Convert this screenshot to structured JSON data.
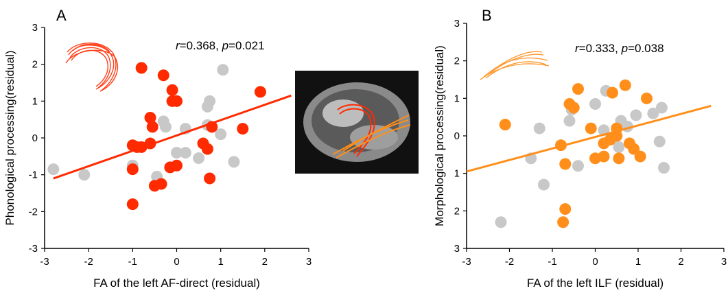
{
  "chart_data": [
    {
      "type": "scatter",
      "panel_label": "A",
      "xlabel": "FA of the left AF-direct (residual)",
      "ylabel": "Phonological processing(residual)",
      "xlim": [
        -3,
        3
      ],
      "ylim": [
        -3,
        3
      ],
      "xticks": [
        "-3",
        "-2",
        "-1",
        "0",
        "1",
        "2",
        "3"
      ],
      "yticks": [
        "3",
        "2",
        "1",
        "0",
        "-1",
        "-2",
        "-3"
      ],
      "annotation": {
        "r_sym": "r",
        "r_text": "=0.368, ",
        "p_sym": "p",
        "p_text": "=0.021"
      },
      "colors": {
        "highlight": "#ff2a00",
        "other": "#c8c8c8",
        "fit": "#ff2a00"
      },
      "series": [
        {
          "values": [
            [
              -0.8,
              1.9
            ],
            [
              -0.3,
              1.7
            ],
            [
              -0.1,
              1.3
            ],
            [
              -0.1,
              1.0
            ],
            [
              0.0,
              1.0
            ],
            [
              1.9,
              1.25
            ],
            [
              -0.6,
              0.55
            ],
            [
              -0.55,
              0.3
            ],
            [
              0.8,
              0.3
            ],
            [
              1.5,
              0.25
            ],
            [
              -1.0,
              -0.2
            ],
            [
              -0.9,
              -0.25
            ],
            [
              -0.8,
              -0.25
            ],
            [
              -0.6,
              -0.15
            ],
            [
              0.6,
              -0.15
            ],
            [
              0.7,
              -0.3
            ],
            [
              0.0,
              -0.75
            ],
            [
              -0.15,
              -0.8
            ],
            [
              -1.0,
              -0.85
            ],
            [
              0.75,
              -1.1
            ],
            [
              -0.5,
              -1.3
            ],
            [
              -0.35,
              -1.25
            ],
            [
              -1.0,
              -1.8
            ]
          ]
        },
        {
          "values": [
            [
              -2.8,
              -0.85
            ],
            [
              -2.1,
              -1.0
            ],
            [
              -1.0,
              -0.75
            ],
            [
              -0.45,
              -1.05
            ],
            [
              -0.3,
              0.45
            ],
            [
              -0.25,
              0.3
            ],
            [
              0.2,
              0.25
            ],
            [
              0.7,
              0.35
            ],
            [
              0.2,
              -0.4
            ],
            [
              0.0,
              -0.4
            ],
            [
              0.5,
              -0.55
            ],
            [
              0.75,
              1.0
            ],
            [
              0.7,
              0.85
            ],
            [
              1.0,
              0.1
            ],
            [
              1.05,
              1.85
            ],
            [
              1.3,
              -0.65
            ]
          ]
        }
      ],
      "fit": {
        "x": [
          -2.8,
          2.6
        ],
        "y": [
          -1.1,
          1.15
        ]
      }
    },
    {
      "type": "scatter",
      "panel_label": "B",
      "xlabel": "FA of the left ILF (residual)",
      "ylabel": "Morphological processing(residual)",
      "xlim": [
        -3,
        3
      ],
      "ylim": [
        -3,
        3
      ],
      "xticks": [
        "-3",
        "-2",
        "-1",
        "0",
        "1",
        "2",
        "3"
      ],
      "yticks": [
        "3",
        "2",
        "1",
        "0",
        "1",
        "2",
        "3"
      ],
      "annotation": {
        "r_sym": "r",
        "r_text": "=0.333, ",
        "p_sym": "p",
        "p_text": "=0.038"
      },
      "colors": {
        "highlight": "#ff8f1a",
        "other": "#c8c8c8",
        "fit": "#ff8f1a"
      },
      "series": [
        {
          "values": [
            [
              -0.4,
              1.25
            ],
            [
              0.4,
              1.15
            ],
            [
              0.7,
              1.35
            ],
            [
              1.2,
              1.0
            ],
            [
              -0.6,
              0.85
            ],
            [
              -0.5,
              0.75
            ],
            [
              -2.1,
              0.3
            ],
            [
              -0.1,
              0.2
            ],
            [
              0.5,
              0.2
            ],
            [
              -0.8,
              -0.25
            ],
            [
              0.2,
              -0.2
            ],
            [
              0.5,
              0.0
            ],
            [
              0.8,
              -0.2
            ],
            [
              0.9,
              -0.35
            ],
            [
              -0.7,
              -0.75
            ],
            [
              0.0,
              -0.6
            ],
            [
              0.2,
              -0.55
            ],
            [
              0.55,
              -0.6
            ],
            [
              1.05,
              -0.55
            ],
            [
              0.35,
              -0.1
            ],
            [
              -0.7,
              -1.95
            ],
            [
              -0.75,
              -2.3
            ]
          ]
        },
        {
          "values": [
            [
              -2.2,
              -2.3
            ],
            [
              -1.2,
              -1.3
            ],
            [
              -1.5,
              -0.6
            ],
            [
              -1.3,
              0.2
            ],
            [
              -0.6,
              0.4
            ],
            [
              -0.55,
              0.7
            ],
            [
              -0.4,
              -0.8
            ],
            [
              0.0,
              0.85
            ],
            [
              0.25,
              1.2
            ],
            [
              0.2,
              0.15
            ],
            [
              0.6,
              0.4
            ],
            [
              0.75,
              0.25
            ],
            [
              0.95,
              0.55
            ],
            [
              1.35,
              0.6
            ],
            [
              1.55,
              0.75
            ],
            [
              1.5,
              -0.15
            ],
            [
              1.6,
              -0.85
            ],
            [
              0.55,
              -0.3
            ]
          ]
        }
      ],
      "fit": {
        "x": [
          -3,
          2.7
        ],
        "y": [
          -0.95,
          0.8
        ]
      }
    }
  ]
}
